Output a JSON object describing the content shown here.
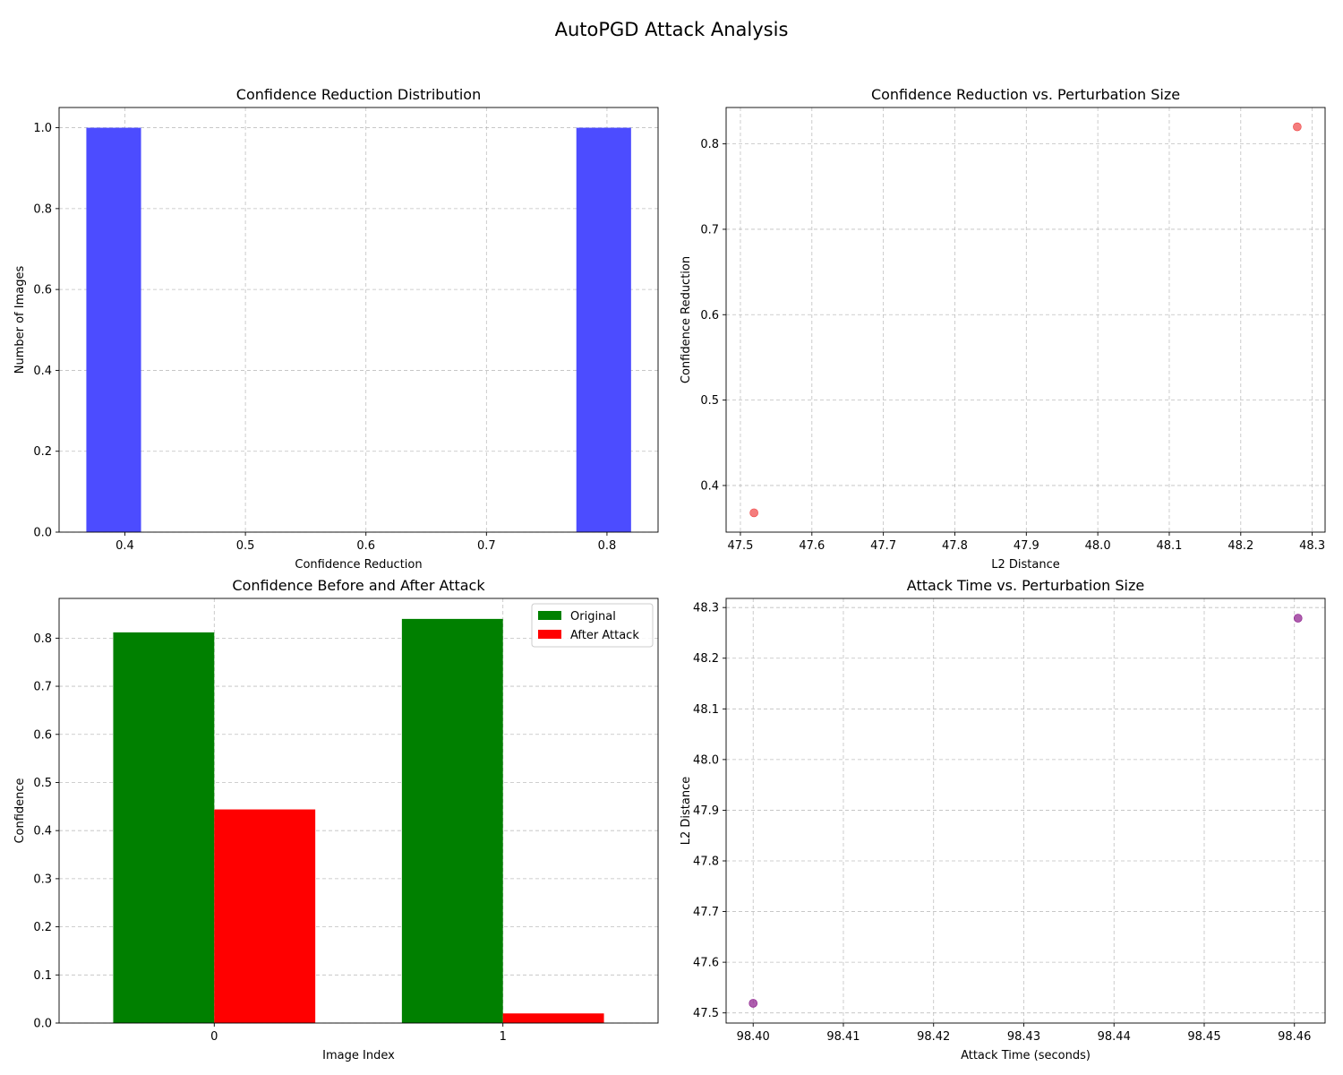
{
  "figure": {
    "title": "AutoPGD Attack Analysis"
  },
  "chart_data": [
    {
      "id": "hist",
      "type": "bar",
      "title": "Confidence Reduction Distribution",
      "xlabel": "Confidence Reduction",
      "ylabel": "Number of Images",
      "xlim": [
        0.3454,
        0.8424
      ],
      "ylim": [
        0,
        1.05
      ],
      "xticks": [
        0.4,
        0.5,
        0.6,
        0.7,
        0.8
      ],
      "xtick_labels": [
        "0.4",
        "0.5",
        "0.6",
        "0.7",
        "0.8"
      ],
      "yticks": [
        0,
        0.2,
        0.4,
        0.6,
        0.8,
        1.0
      ],
      "ytick_labels": [
        "0.0",
        "0.2",
        "0.4",
        "0.6",
        "0.8",
        "1.0"
      ],
      "grid": true,
      "color": "#4c4cff",
      "bins": [
        {
          "x0": 0.368,
          "x1": 0.4134,
          "value": 1
        },
        {
          "x0": 0.7746,
          "x1": 0.82,
          "value": 1
        }
      ]
    },
    {
      "id": "scatter1",
      "type": "scatter",
      "title": "Confidence Reduction vs. Perturbation Size",
      "xlabel": "L2 Distance",
      "ylabel": "Confidence Reduction",
      "xlim": [
        47.48,
        48.318
      ],
      "ylim": [
        0.3454,
        0.8426
      ],
      "xticks": [
        47.5,
        47.6,
        47.7,
        47.8,
        47.9,
        48.0,
        48.1,
        48.2,
        48.3
      ],
      "xtick_labels": [
        "47.5",
        "47.6",
        "47.7",
        "47.8",
        "47.9",
        "48.0",
        "48.1",
        "48.2",
        "48.3"
      ],
      "yticks": [
        0.4,
        0.5,
        0.6,
        0.7,
        0.8
      ],
      "ytick_labels": [
        "0.4",
        "0.5",
        "0.6",
        "0.7",
        "0.8"
      ],
      "grid": true,
      "color": "#f04646",
      "points": [
        {
          "x": 47.519,
          "y": 0.368
        },
        {
          "x": 48.279,
          "y": 0.82
        }
      ]
    },
    {
      "id": "grouped",
      "type": "bar",
      "title": "Confidence Before and After Attack",
      "xlabel": "Image Index",
      "ylabel": "Confidence",
      "categories": [
        "0",
        "1"
      ],
      "xlim": [
        -0.5375,
        1.5375
      ],
      "ylim": [
        0,
        0.8826
      ],
      "yticks": [
        0,
        0.1,
        0.2,
        0.3,
        0.4,
        0.5,
        0.6,
        0.7,
        0.8
      ],
      "ytick_labels": [
        "0.0",
        "0.1",
        "0.2",
        "0.3",
        "0.4",
        "0.5",
        "0.6",
        "0.7",
        "0.8"
      ],
      "grid": true,
      "legend_position": "top-right",
      "series": [
        {
          "name": "Original",
          "color": "#008000",
          "values": [
            0.812,
            0.84
          ]
        },
        {
          "name": "After Attack",
          "color": "#ff0000",
          "values": [
            0.444,
            0.02
          ]
        }
      ]
    },
    {
      "id": "scatter2",
      "type": "scatter",
      "title": "Attack Time vs. Perturbation Size",
      "xlabel": "Attack Time (seconds)",
      "ylabel": "L2 Distance",
      "xlim": [
        98.397,
        98.4634
      ],
      "ylim": [
        47.48,
        48.318
      ],
      "xticks": [
        98.4,
        98.41,
        98.42,
        98.43,
        98.44,
        98.45,
        98.46
      ],
      "xtick_labels": [
        "98.40",
        "98.41",
        "98.42",
        "98.43",
        "98.44",
        "98.45",
        "98.46"
      ],
      "yticks": [
        47.5,
        47.6,
        47.7,
        47.8,
        47.9,
        48.0,
        48.1,
        48.2,
        48.3
      ],
      "ytick_labels": [
        "47.5",
        "47.6",
        "47.7",
        "47.8",
        "47.9",
        "48.0",
        "48.1",
        "48.2",
        "48.3"
      ],
      "grid": true,
      "color": "#8b1a8b",
      "points": [
        {
          "x": 98.4,
          "y": 47.519
        },
        {
          "x": 98.4604,
          "y": 48.279
        }
      ]
    }
  ]
}
